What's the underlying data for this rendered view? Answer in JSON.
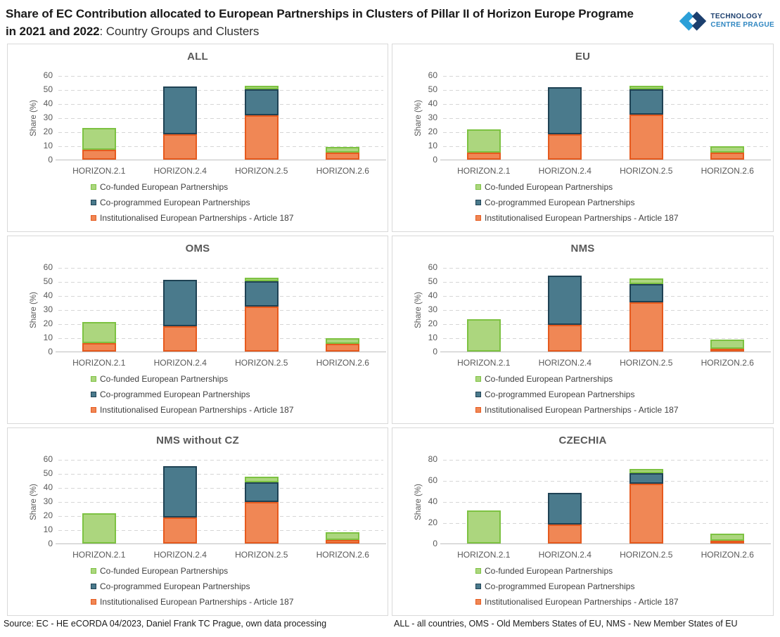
{
  "header": {
    "title_line1": "Share of EC Contribution allocated to European Partnerships in Clusters of Pillar II of Horizon Europe Programe",
    "title_line2_bold": "in 2021 and 2022",
    "title_line2_normal": ": Country Groups and Clusters",
    "logo_line1": "TECHNOLOGY",
    "logo_line2": "CENTRE PRAGUE"
  },
  "footer": {
    "source": "Source: EC - HE eCORDA 04/2023, Daniel Frank TC Prague, own data processing",
    "abbreviations": "ALL - all countries, OMS - Old Members States of EU, NMS - New Member States of EU"
  },
  "colors": {
    "accent_light_blue": "#2B9FD8",
    "accent_navy": "#1C3F6E",
    "grid": "#d6d6d6",
    "axis": "#bfbfbf",
    "series": {
      "cofunded": {
        "fill": "#ACD67E",
        "border": "#7DC242"
      },
      "coprogrammed": {
        "fill": "#4A7A8C",
        "border": "#1F4254"
      },
      "institutionalised": {
        "fill": "#F08755",
        "border": "#E65A1E"
      }
    }
  },
  "legend": [
    {
      "color_key": "cofunded",
      "label": "Co-funded European Partnerships"
    },
    {
      "color_key": "coprogrammed",
      "label": "Co-programmed European Partnerships"
    },
    {
      "color_key": "institutionalised",
      "label": "Institutionalised European Partnerships  - Article 187"
    }
  ],
  "chart_data": [
    {
      "type": "bar",
      "stacked": true,
      "title": "ALL",
      "ylabel": "Share (%)",
      "ylim": [
        0,
        60
      ],
      "yticks": [
        0,
        10,
        20,
        30,
        40,
        50,
        60
      ],
      "categories": [
        "HORIZON.2.1",
        "HORIZON.2.4",
        "HORIZON.2.5",
        "HORIZON.2.6"
      ],
      "series": [
        {
          "color_key": "institutionalised",
          "name": "Institutionalised European Partnerships - Article 187",
          "values": [
            7,
            18,
            31.5,
            5
          ]
        },
        {
          "color_key": "coprogrammed",
          "name": "Co-programmed European Partnerships",
          "values": [
            0,
            34,
            18.5,
            0
          ]
        },
        {
          "color_key": "cofunded",
          "name": "Co-funded European Partnerships",
          "values": [
            15.5,
            0,
            2.5,
            4
          ]
        }
      ]
    },
    {
      "type": "bar",
      "stacked": true,
      "title": "EU",
      "ylabel": "Share (%)",
      "ylim": [
        0,
        60
      ],
      "yticks": [
        0,
        10,
        20,
        30,
        40,
        50,
        60
      ],
      "categories": [
        "HORIZON.2.1",
        "HORIZON.2.4",
        "HORIZON.2.5",
        "HORIZON.2.6"
      ],
      "series": [
        {
          "color_key": "institutionalised",
          "name": "Institutionalised European Partnerships - Article 187",
          "values": [
            5,
            18,
            32,
            5
          ]
        },
        {
          "color_key": "coprogrammed",
          "name": "Co-programmed European Partnerships",
          "values": [
            0,
            33.5,
            18,
            0
          ]
        },
        {
          "color_key": "cofunded",
          "name": "Co-funded European Partnerships",
          "values": [
            16.5,
            0,
            2.5,
            4.5
          ]
        }
      ]
    },
    {
      "type": "bar",
      "stacked": true,
      "title": "OMS",
      "ylabel": "Share (%)",
      "ylim": [
        0,
        60
      ],
      "yticks": [
        0,
        10,
        20,
        30,
        40,
        50,
        60
      ],
      "categories": [
        "HORIZON.2.1",
        "HORIZON.2.4",
        "HORIZON.2.5",
        "HORIZON.2.6"
      ],
      "series": [
        {
          "color_key": "institutionalised",
          "name": "Institutionalised European Partnerships - Article 187",
          "values": [
            6,
            18,
            32,
            5.5
          ]
        },
        {
          "color_key": "coprogrammed",
          "name": "Co-programmed European Partnerships",
          "values": [
            0,
            33,
            18,
            0
          ]
        },
        {
          "color_key": "cofunded",
          "name": "Co-funded European Partnerships",
          "values": [
            15,
            0,
            2.5,
            4
          ]
        }
      ]
    },
    {
      "type": "bar",
      "stacked": true,
      "title": "NMS",
      "ylabel": "Share (%)",
      "ylim": [
        0,
        60
      ],
      "yticks": [
        0,
        10,
        20,
        30,
        40,
        50,
        60
      ],
      "categories": [
        "HORIZON.2.1",
        "HORIZON.2.4",
        "HORIZON.2.5",
        "HORIZON.2.6"
      ],
      "series": [
        {
          "color_key": "institutionalised",
          "name": "Institutionalised European Partnerships - Article 187",
          "values": [
            0,
            19,
            35,
            2
          ]
        },
        {
          "color_key": "coprogrammed",
          "name": "Co-programmed European Partnerships",
          "values": [
            0,
            35,
            13,
            0
          ]
        },
        {
          "color_key": "cofunded",
          "name": "Co-funded European Partnerships",
          "values": [
            23,
            0,
            4,
            6.5
          ]
        }
      ]
    },
    {
      "type": "bar",
      "stacked": true,
      "title": "NMS without CZ",
      "ylabel": "Share (%)",
      "ylim": [
        0,
        60
      ],
      "yticks": [
        0,
        10,
        20,
        30,
        40,
        50,
        60
      ],
      "categories": [
        "HORIZON.2.1",
        "HORIZON.2.4",
        "HORIZON.2.5",
        "HORIZON.2.6"
      ],
      "series": [
        {
          "color_key": "institutionalised",
          "name": "Institutionalised European Partnerships - Article 187",
          "values": [
            0,
            18.5,
            29.5,
            2.5
          ]
        },
        {
          "color_key": "coprogrammed",
          "name": "Co-programmed European Partnerships",
          "values": [
            0,
            36.5,
            14,
            0
          ]
        },
        {
          "color_key": "cofunded",
          "name": "Co-funded European Partnerships",
          "values": [
            21.5,
            0,
            4,
            5.5
          ]
        }
      ]
    },
    {
      "type": "bar",
      "stacked": true,
      "title": "CZECHIA",
      "ylabel": "Share (%)",
      "ylim": [
        0,
        80
      ],
      "yticks": [
        0,
        20,
        40,
        60,
        80
      ],
      "categories": [
        "HORIZON.2.1",
        "HORIZON.2.4",
        "HORIZON.2.5",
        "HORIZON.2.6"
      ],
      "series": [
        {
          "color_key": "institutionalised",
          "name": "Institutionalised European Partnerships - Article 187",
          "values": [
            0,
            18,
            57,
            2.5
          ]
        },
        {
          "color_key": "coprogrammed",
          "name": "Co-programmed European Partnerships",
          "values": [
            0,
            30,
            10,
            0
          ]
        },
        {
          "color_key": "cofunded",
          "name": "Co-funded European Partnerships",
          "values": [
            31.5,
            0,
            3.5,
            7
          ]
        }
      ]
    }
  ]
}
